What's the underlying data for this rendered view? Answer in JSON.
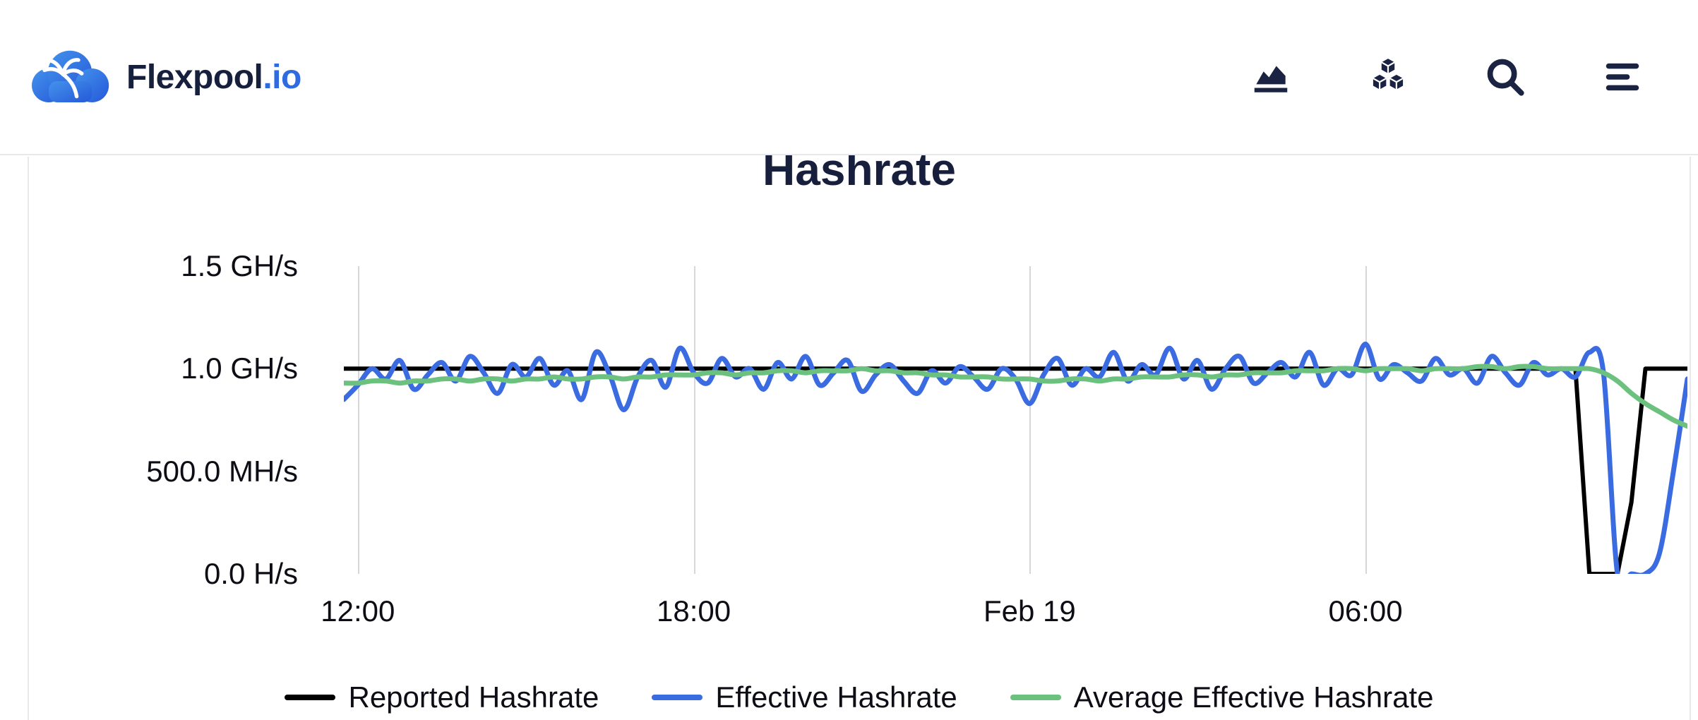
{
  "header": {
    "logo_primary": "Flexpool",
    "logo_accent": ".io",
    "icons": [
      "area-chart",
      "blocks",
      "search",
      "menu"
    ]
  },
  "colors": {
    "navy_text": "#16203c",
    "accent_blue": "#2f6ae0",
    "gridline": "#d7d7da",
    "border": "#e7e8ec"
  },
  "chart_data": {
    "type": "line",
    "title": "Hashrate",
    "y_domain": [
      0,
      1.5
    ],
    "x_domain": [
      -0.25,
      23.75
    ],
    "x_start": -0.25,
    "x_step": 0.25,
    "grid": "vertical-only",
    "legend_position": "bottom",
    "y_ticks": [
      {
        "label": "1.5 GH/s",
        "value": 1.5
      },
      {
        "label": "1.0 GH/s",
        "value": 1.0
      },
      {
        "label": "500.0 MH/s",
        "value": 0.5
      },
      {
        "label": "0.0 H/s",
        "value": 0.0
      }
    ],
    "x_ticks": [
      {
        "label": "12:00",
        "hour": 0
      },
      {
        "label": "18:00",
        "hour": 6
      },
      {
        "label": "Feb 19",
        "hour": 12
      },
      {
        "label": "06:00",
        "hour": 18
      }
    ],
    "series": [
      {
        "name": "Reported Hashrate",
        "color": "#000000",
        "width": 6,
        "smooth": false,
        "data_name": "reported-hashrate-line",
        "unit": "GH/s",
        "values": [
          1.0,
          1.0,
          1.0,
          1.0,
          1.0,
          1.0,
          1.0,
          1.0,
          1.0,
          1.0,
          1.0,
          1.0,
          1.0,
          1.0,
          1.0,
          1.0,
          1.0,
          1.0,
          1.0,
          1.0,
          1.0,
          1.0,
          1.0,
          1.0,
          1.0,
          1.0,
          1.0,
          1.0,
          1.0,
          1.0,
          1.0,
          1.0,
          1.0,
          1.0,
          1.0,
          1.0,
          1.0,
          1.0,
          1.0,
          1.0,
          1.0,
          1.0,
          1.0,
          1.0,
          1.0,
          1.0,
          1.0,
          1.0,
          1.0,
          1.0,
          1.0,
          1.0,
          1.0,
          1.0,
          1.0,
          1.0,
          1.0,
          1.0,
          1.0,
          1.0,
          1.0,
          1.0,
          1.0,
          1.0,
          1.0,
          1.0,
          1.0,
          1.0,
          1.0,
          1.0,
          1.0,
          1.0,
          1.0,
          1.0,
          1.0,
          1.0,
          1.0,
          1.0,
          1.0,
          1.0,
          1.0,
          1.0,
          1.0,
          1.0,
          1.0,
          1.0,
          1.0,
          1.0,
          1.0,
          0.0,
          0.0,
          0.0,
          0.35,
          1.0,
          1.0,
          1.0,
          1.0
        ]
      },
      {
        "name": "Effective Hashrate",
        "color": "#3a6be0",
        "width": 7,
        "smooth": true,
        "data_name": "effective-hashrate-line",
        "unit": "GH/s",
        "values": [
          0.85,
          0.92,
          1.0,
          0.95,
          1.04,
          0.9,
          0.97,
          1.03,
          0.94,
          1.06,
          0.98,
          0.88,
          1.02,
          0.96,
          1.05,
          0.92,
          0.99,
          0.85,
          1.08,
          0.97,
          0.8,
          0.96,
          1.04,
          0.91,
          1.1,
          0.98,
          0.93,
          1.05,
          0.96,
          1.0,
          0.9,
          1.03,
          0.95,
          1.06,
          0.92,
          0.98,
          1.04,
          0.89,
          0.97,
          1.02,
          0.94,
          0.88,
          0.99,
          0.93,
          1.01,
          0.96,
          0.9,
          1.0,
          0.95,
          0.83,
          0.97,
          1.05,
          0.92,
          1.0,
          0.96,
          1.08,
          0.94,
          1.02,
          0.97,
          1.1,
          0.95,
          1.04,
          0.9,
          1.0,
          1.06,
          0.93,
          0.98,
          1.03,
          0.96,
          1.08,
          0.92,
          1.0,
          0.97,
          1.12,
          0.95,
          1.02,
          0.98,
          0.94,
          1.05,
          0.97,
          1.0,
          0.93,
          1.06,
          0.98,
          0.92,
          1.03,
          0.97,
          1.0,
          0.96,
          1.08,
          0.98,
          0.0,
          0.0,
          0.0,
          0.1,
          0.5,
          0.95
        ]
      },
      {
        "name": "Average Effective Hashrate",
        "color": "#6cc17e",
        "width": 7,
        "smooth": true,
        "data_name": "average-effective-hashrate-line",
        "unit": "GH/s",
        "values": [
          0.93,
          0.93,
          0.94,
          0.94,
          0.93,
          0.94,
          0.94,
          0.95,
          0.95,
          0.94,
          0.95,
          0.95,
          0.94,
          0.95,
          0.95,
          0.96,
          0.95,
          0.95,
          0.96,
          0.96,
          0.95,
          0.96,
          0.96,
          0.97,
          0.97,
          0.97,
          0.98,
          0.98,
          0.97,
          0.98,
          0.98,
          0.99,
          0.99,
          0.98,
          0.99,
          0.99,
          0.99,
          1.0,
          0.99,
          0.99,
          0.98,
          0.98,
          0.97,
          0.97,
          0.96,
          0.96,
          0.96,
          0.95,
          0.95,
          0.95,
          0.94,
          0.94,
          0.95,
          0.95,
          0.94,
          0.95,
          0.95,
          0.96,
          0.96,
          0.96,
          0.97,
          0.97,
          0.96,
          0.97,
          0.97,
          0.98,
          0.98,
          0.98,
          0.99,
          0.99,
          0.99,
          1.0,
          1.0,
          0.99,
          1.0,
          1.0,
          1.0,
          0.99,
          1.0,
          1.0,
          1.0,
          1.01,
          1.01,
          1.0,
          1.01,
          1.01,
          1.0,
          1.0,
          1.0,
          1.0,
          0.98,
          0.94,
          0.88,
          0.83,
          0.79,
          0.75,
          0.72
        ]
      }
    ]
  }
}
